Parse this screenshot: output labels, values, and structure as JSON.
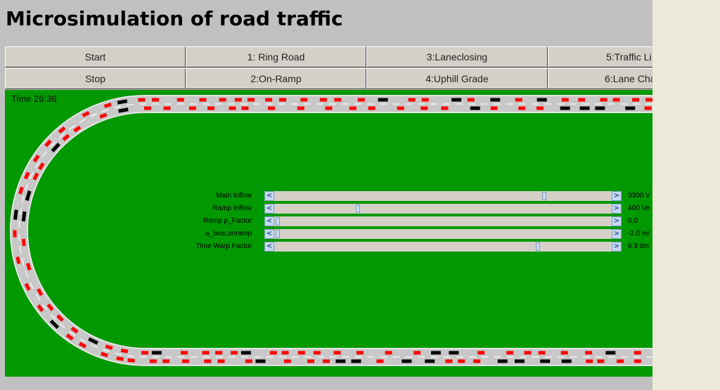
{
  "title": "Microsimulation of road traffic",
  "buttons": {
    "start": "Start",
    "stop": "Stop",
    "ring_road": "1: Ring Road",
    "on_ramp": "2:On-Ramp",
    "laneclosing": "3:Laneclosing",
    "uphill_grade": "4:Uphill Grade",
    "traffic_lights": "5:Traffic Li",
    "lane_change": "6:Lane Cha"
  },
  "time": "Time  26:36",
  "sliders": [
    {
      "label": "Main Inflow",
      "value": "3300 V",
      "position": 0.8
    },
    {
      "label": "Ramp Inflow",
      "value": "400 Ve",
      "position": 0.24
    },
    {
      "label": "Ramp p_Factor",
      "value": "0.0",
      "position": 0.0
    },
    {
      "label": "a_bias,onramp",
      "value": "-2.0 m/",
      "position": 0.0
    },
    {
      "label": "Time Warp Factor",
      "value": "6.9 tim",
      "position": 0.78
    }
  ],
  "colors": {
    "grass": "#009900",
    "road": "#c8c8c8",
    "car": "#ff0000",
    "truck": "#000000",
    "panel": "#c0c0c0"
  }
}
